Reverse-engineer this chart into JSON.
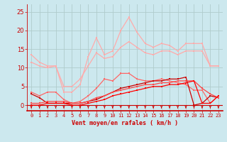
{
  "x": [
    0,
    1,
    2,
    3,
    4,
    5,
    6,
    7,
    8,
    9,
    10,
    11,
    12,
    13,
    14,
    15,
    16,
    17,
    18,
    19,
    20,
    21,
    22,
    23
  ],
  "series": [
    {
      "color": "#ffaaaa",
      "lw": 0.9,
      "marker": "s",
      "ms": 2.0,
      "values": [
        13.5,
        11.5,
        10.5,
        10.5,
        3.5,
        3.5,
        5.5,
        13.0,
        18.0,
        13.5,
        14.5,
        20.0,
        23.5,
        19.5,
        16.5,
        15.5,
        16.5,
        16.0,
        14.5,
        16.5,
        16.5,
        16.5,
        10.5,
        10.5
      ]
    },
    {
      "color": "#ffaaaa",
      "lw": 0.9,
      "marker": "s",
      "ms": 2.0,
      "values": [
        11.5,
        10.5,
        10.0,
        10.5,
        5.0,
        5.0,
        7.0,
        10.5,
        14.0,
        12.5,
        13.0,
        15.5,
        17.0,
        15.5,
        14.0,
        13.5,
        14.5,
        14.5,
        13.5,
        14.5,
        14.5,
        14.5,
        10.5,
        10.5
      ]
    },
    {
      "color": "#ff6666",
      "lw": 0.9,
      "marker": "s",
      "ms": 2.0,
      "values": [
        3.5,
        2.5,
        3.5,
        3.5,
        1.5,
        0.5,
        1.0,
        2.5,
        4.5,
        7.0,
        6.5,
        8.5,
        8.5,
        7.0,
        6.5,
        6.5,
        7.0,
        6.5,
        6.0,
        5.5,
        4.0,
        4.0,
        0.5,
        2.5
      ]
    },
    {
      "color": "#cc0000",
      "lw": 0.9,
      "marker": "s",
      "ms": 2.0,
      "values": [
        3.0,
        2.0,
        0.5,
        0.5,
        0.5,
        0.5,
        0.5,
        1.0,
        1.5,
        2.5,
        3.5,
        4.5,
        5.0,
        5.5,
        6.0,
        6.5,
        6.5,
        7.0,
        7.0,
        7.5,
        0.0,
        0.5,
        2.5,
        2.0
      ]
    },
    {
      "color": "#ff4444",
      "lw": 0.9,
      "marker": "s",
      "ms": 2.0,
      "values": [
        0.5,
        0.5,
        1.0,
        1.0,
        1.0,
        0.5,
        0.5,
        1.0,
        2.0,
        2.5,
        3.5,
        4.0,
        4.5,
        5.0,
        5.5,
        5.5,
        6.0,
        6.0,
        6.5,
        6.5,
        6.5,
        4.5,
        3.0,
        2.0
      ]
    },
    {
      "color": "#ff0000",
      "lw": 0.9,
      "marker": "s",
      "ms": 2.0,
      "values": [
        0.0,
        0.0,
        0.5,
        0.5,
        0.5,
        0.0,
        0.0,
        0.5,
        1.0,
        1.5,
        2.5,
        3.0,
        3.5,
        4.0,
        4.5,
        5.0,
        5.0,
        5.5,
        5.5,
        6.0,
        6.5,
        0.5,
        0.5,
        2.5
      ]
    }
  ],
  "xlim": [
    -0.5,
    23.5
  ],
  "ylim": [
    -1.5,
    27
  ],
  "yticks": [
    0,
    5,
    10,
    15,
    20,
    25
  ],
  "xlabel": "Vent moyen/en rafales ( km/h )",
  "bg_color": "#cce8ee",
  "grid_color": "#b0cccc",
  "tick_color": "#cc0000",
  "label_color": "#cc0000",
  "arrow_color": "#cc0000",
  "spine_color": "#cc0000"
}
